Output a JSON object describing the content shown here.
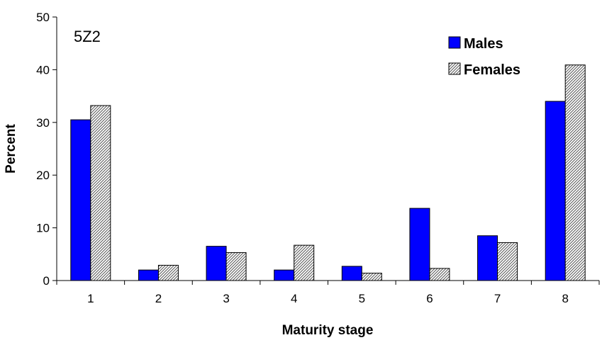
{
  "chart_data": {
    "type": "bar",
    "annotation": "5Z2",
    "xlabel": "Maturity stage",
    "ylabel": "Percent",
    "ylim": [
      0,
      50
    ],
    "yticks": [
      "0",
      "10",
      "20",
      "30",
      "40",
      "50"
    ],
    "categories": [
      "1",
      "2",
      "3",
      "4",
      "5",
      "6",
      "7",
      "8"
    ],
    "series": [
      {
        "name": "Males",
        "values": [
          30.5,
          2.0,
          6.5,
          2.0,
          2.7,
          13.7,
          8.5,
          34.0
        ],
        "color": "#0000ff",
        "pattern": "solid"
      },
      {
        "name": "Females",
        "values": [
          33.2,
          2.9,
          5.3,
          6.7,
          1.4,
          2.3,
          7.2,
          40.9
        ],
        "color": "#ffffff",
        "pattern": "diagonal-hatch"
      }
    ],
    "legend_position": "top-right",
    "grid": false
  }
}
